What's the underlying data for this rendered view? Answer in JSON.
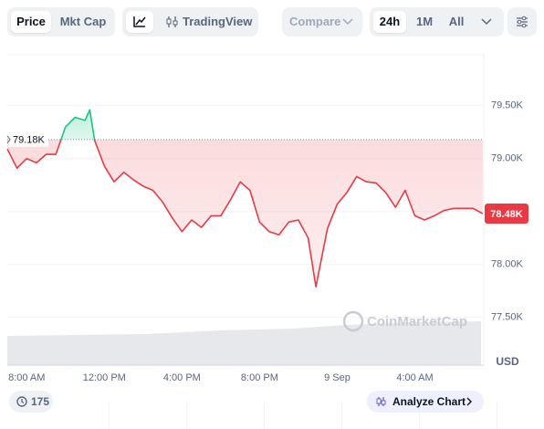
{
  "toolbar": {
    "price": "Price",
    "mkt_cap": "Mkt Cap",
    "tradingview": "TradingView",
    "compare": "Compare",
    "range_24h": "24h",
    "range_1m": "1M",
    "range_all": "All"
  },
  "chart_data": {
    "type": "line",
    "currency": "USD",
    "watermark": "CoinMarketCap",
    "x": [
      -1,
      -0.5,
      0,
      0.5,
      1,
      1.5,
      2,
      2.5,
      3,
      3.25,
      3.5,
      4,
      4.5,
      5,
      5.5,
      6,
      6.5,
      7,
      7.5,
      8,
      8.5,
      9,
      9.5,
      10,
      10.5,
      11,
      11.5,
      12,
      12.5,
      13,
      13.5,
      14,
      14.5,
      14.9,
      15.5,
      16,
      16.5,
      17,
      17.5,
      18,
      18.5,
      19,
      19.5,
      20,
      20.5,
      21,
      21.5,
      22,
      22.5,
      23,
      23.5
    ],
    "series": [
      {
        "name": "Price",
        "values": [
          79.09,
          78.91,
          79.0,
          78.96,
          79.04,
          79.04,
          79.3,
          79.39,
          79.36,
          79.46,
          79.17,
          78.93,
          78.78,
          78.87,
          78.8,
          78.74,
          78.7,
          78.59,
          78.44,
          78.31,
          78.42,
          78.35,
          78.46,
          78.46,
          78.61,
          78.78,
          78.7,
          78.4,
          78.31,
          78.28,
          78.4,
          78.42,
          78.25,
          77.79,
          78.34,
          78.57,
          78.68,
          78.83,
          78.78,
          78.77,
          78.68,
          78.54,
          78.7,
          78.46,
          78.42,
          78.46,
          78.51,
          78.53,
          78.53,
          78.53,
          78.48
        ]
      }
    ],
    "colors": {
      "up": "#16c784",
      "down": "#ea3943"
    },
    "xlim": [
      -1,
      23.55
    ],
    "xticks": [
      {
        "value": 0,
        "label": "8:00 AM"
      },
      {
        "value": 4,
        "label": "12:00 PM"
      },
      {
        "value": 8,
        "label": "4:00 PM"
      },
      {
        "value": 12,
        "label": "8:00 PM"
      },
      {
        "value": 16,
        "label": "9 Sep"
      },
      {
        "value": 20,
        "label": "4:00 AM"
      }
    ],
    "ylim": [
      77.05,
      79.98
    ],
    "yticks": [
      {
        "value": 77.5,
        "label": "77.50K"
      },
      {
        "value": 78.0,
        "label": "78.00K"
      },
      {
        "value": 78.5,
        "label": "78.50K"
      },
      {
        "value": 79.0,
        "label": "79.00K"
      },
      {
        "value": 79.5,
        "label": "79.50K"
      }
    ],
    "reference": {
      "value": 79.18,
      "label": "79.18K"
    },
    "last": {
      "value": 78.48,
      "label": "78.48K"
    },
    "grid": true
  },
  "footer": {
    "count": "175",
    "analyze": "Analyze Chart"
  }
}
